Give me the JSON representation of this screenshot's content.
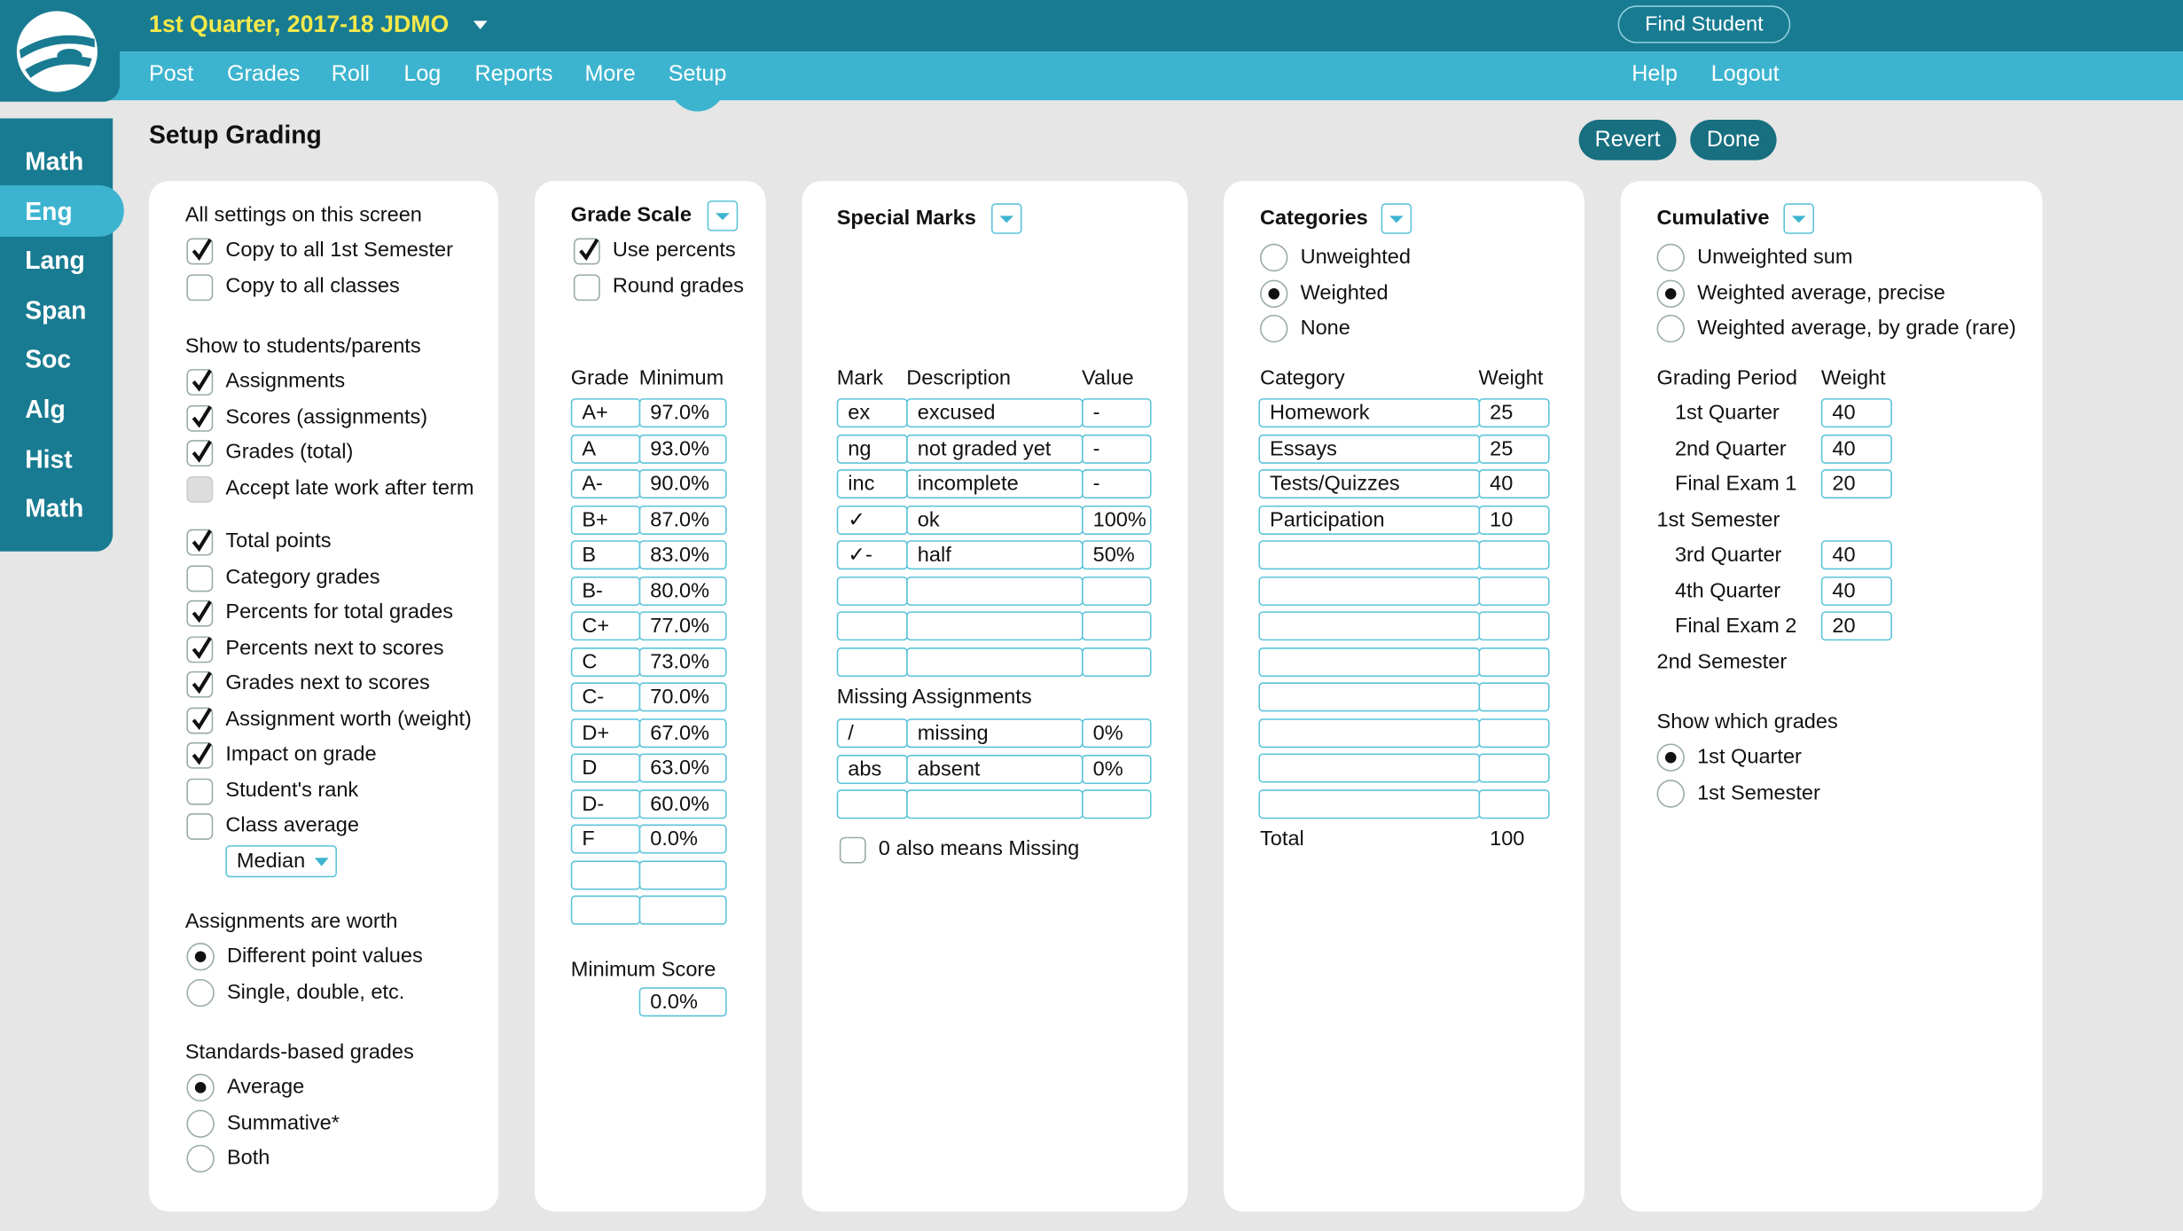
{
  "header": {
    "term": "1st Quarter, 2017-18 JDMO",
    "find_student": "Find Student",
    "nav": [
      "Post",
      "Grades",
      "Roll",
      "Log",
      "Reports",
      "More",
      "Setup"
    ],
    "right_nav": [
      "Help",
      "Logout"
    ]
  },
  "sidebar": [
    "Math",
    "Eng",
    "Lang",
    "Span",
    "Soc",
    "Alg",
    "Hist",
    "Math"
  ],
  "page": {
    "title": "Setup Grading",
    "buttons": [
      "Revert",
      "Done"
    ]
  },
  "general": {
    "all_settings": {
      "heading": "All settings on this screen",
      "options": [
        {
          "label": "Copy to all 1st Semester",
          "checked": true
        },
        {
          "label": "Copy to all classes",
          "checked": false
        }
      ]
    },
    "show": {
      "heading": "Show to students/parents",
      "options": [
        {
          "label": "Assignments",
          "checked": true
        },
        {
          "label": "Scores (assignments)",
          "checked": true
        },
        {
          "label": "Grades (total)",
          "checked": true
        },
        {
          "label": "Accept late work after term",
          "checked": false,
          "disabled": true
        }
      ],
      "more_options": [
        {
          "label": "Total points",
          "checked": true
        },
        {
          "label": "Category grades",
          "checked": false
        },
        {
          "label": "Percents for total grades",
          "checked": true
        },
        {
          "label": "Percents next to scores",
          "checked": true
        },
        {
          "label": "Grades next to scores",
          "checked": true
        },
        {
          "label": "Assignment worth (weight)",
          "checked": true
        },
        {
          "label": "Impact on grade",
          "checked": true
        },
        {
          "label": "Student's rank",
          "checked": false
        },
        {
          "label": "Class average",
          "checked": false
        }
      ],
      "average_type": "Median"
    },
    "worth": {
      "heading": "Assignments are worth",
      "options": [
        {
          "label": "Different point values",
          "selected": true
        },
        {
          "label": "Single, double, etc.",
          "selected": false
        }
      ]
    },
    "standards": {
      "heading": "Standards-based grades",
      "options": [
        {
          "label": "Average",
          "selected": true
        },
        {
          "label": "Summative*",
          "selected": false
        },
        {
          "label": "Both",
          "selected": false
        }
      ]
    }
  },
  "grade_scale": {
    "title": "Grade Scale",
    "options": [
      {
        "label": "Use percents",
        "checked": true
      },
      {
        "label": "Round grades",
        "checked": false
      }
    ],
    "columns": [
      "Grade",
      "Minimum"
    ],
    "rows": [
      [
        "A+",
        "97.0%"
      ],
      [
        "A",
        "93.0%"
      ],
      [
        "A-",
        "90.0%"
      ],
      [
        "B+",
        "87.0%"
      ],
      [
        "B",
        "83.0%"
      ],
      [
        "B-",
        "80.0%"
      ],
      [
        "C+",
        "77.0%"
      ],
      [
        "C",
        "73.0%"
      ],
      [
        "C-",
        "70.0%"
      ],
      [
        "D+",
        "67.0%"
      ],
      [
        "D",
        "63.0%"
      ],
      [
        "D-",
        "60.0%"
      ],
      [
        "F",
        "0.0%"
      ]
    ],
    "min_score_label": "Minimum Score",
    "min_score": "0.0%"
  },
  "special_marks": {
    "title": "Special Marks",
    "columns": [
      "Mark",
      "Description",
      "Value"
    ],
    "rows": [
      [
        "ex",
        "excused",
        "-"
      ],
      [
        "ng",
        "not graded yet",
        "-"
      ],
      [
        "inc",
        "incomplete",
        "-"
      ],
      [
        "✓",
        "ok",
        "100%"
      ],
      [
        "✓-",
        "half",
        "50%"
      ]
    ],
    "missing_heading": "Missing Assignments",
    "missing_rows": [
      [
        "/",
        "missing",
        "0%"
      ],
      [
        "abs",
        "absent",
        "0%"
      ]
    ],
    "zero_option": {
      "label": "0 also means Missing",
      "checked": false
    }
  },
  "categories": {
    "title": "Categories",
    "options": [
      {
        "label": "Unweighted",
        "selected": false
      },
      {
        "label": "Weighted",
        "selected": true
      },
      {
        "label": "None",
        "selected": false
      }
    ],
    "columns": [
      "Category",
      "Weight"
    ],
    "rows": [
      [
        "Homework",
        "25"
      ],
      [
        "Essays",
        "25"
      ],
      [
        "Tests/Quizzes",
        "40"
      ],
      [
        "Participation",
        "10"
      ]
    ],
    "total_label": "Total",
    "total": "100"
  },
  "cumulative": {
    "title": "Cumulative",
    "options": [
      {
        "label": "Unweighted sum",
        "selected": false
      },
      {
        "label": "Weighted average, precise",
        "selected": true
      },
      {
        "label": "Weighted average, by grade (rare)",
        "selected": false
      }
    ],
    "columns": [
      "Grading Period",
      "Weight"
    ],
    "periods": [
      {
        "label": "1st Quarter",
        "weight": "40"
      },
      {
        "label": "2nd Quarter",
        "weight": "40"
      },
      {
        "label": "Final Exam 1",
        "weight": "20"
      },
      {
        "label": "1st Semester"
      },
      {
        "label": "3rd Quarter",
        "weight": "40"
      },
      {
        "label": "4th Quarter",
        "weight": "40"
      },
      {
        "label": "Final Exam 2",
        "weight": "20"
      },
      {
        "label": "2nd Semester"
      }
    ],
    "show_heading": "Show which grades",
    "show_options": [
      {
        "label": "1st Quarter",
        "selected": true
      },
      {
        "label": "1st Semester",
        "selected": false
      }
    ]
  }
}
